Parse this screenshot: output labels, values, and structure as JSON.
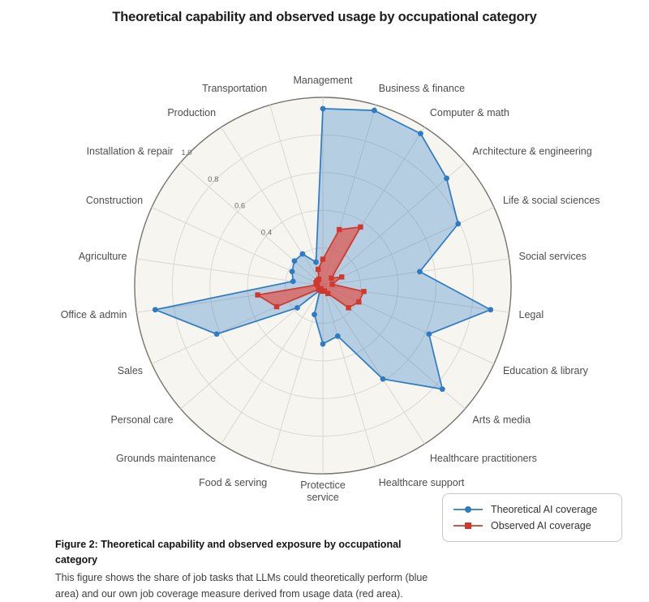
{
  "page": {
    "title": "Theoretical capability and observed usage by occupational category",
    "caption_bold": "Figure 2: Theoretical capability and observed exposure by occupational category",
    "caption_text": "This figure shows the share of job tasks that LLMs could theoretically perform (blue area) and our own job coverage measure derived from usage data (red area)."
  },
  "chart_data": {
    "type": "radar",
    "title": "Theoretical capability and observed usage by occupational category",
    "categories": [
      "Management",
      "Business & finance",
      "Computer & math",
      "Architecture & engineering",
      "Life & social sciences",
      "Social services",
      "Legal",
      "Education & library",
      "Arts & media",
      "Healthcare practitioners",
      "Healthcare support",
      "Protectice\nservice",
      "Food & serving",
      "Grounds maintenance",
      "Personal care",
      "Sales",
      "Office & admin",
      "Agriculture",
      "Construction",
      "Installation & repair",
      "Production",
      "Transportation"
    ],
    "series": [
      {
        "name": "Theoretical AI coverage",
        "marker": "circle",
        "color": "#2f7bc3",
        "fill": "rgba(47,123,195,0.32)",
        "values": [
          0.94,
          0.97,
          0.96,
          0.87,
          0.79,
          0.52,
          0.9,
          0.62,
          0.84,
          0.59,
          0.28,
          0.31,
          0.16,
          0.03,
          0.18,
          0.62,
          0.9,
          0.16,
          0.18,
          0.2,
          0.2,
          0.13
        ]
      },
      {
        "name": "Observed AI coverage",
        "marker": "square",
        "color": "#d0382e",
        "fill": "rgba(227,74,64,0.65)",
        "values": [
          0.14,
          0.31,
          0.37,
          0.06,
          0.11,
          0.05,
          0.22,
          0.21,
          0.18,
          0.05,
          0.03,
          0.03,
          0.03,
          0.02,
          0.03,
          0.27,
          0.35,
          0.03,
          0.04,
          0.04,
          0.04,
          0.09
        ]
      }
    ],
    "radial_ticks": [
      "0.4",
      "0.6",
      "0.8",
      "1.0"
    ],
    "radial_tick_values": [
      0.4,
      0.6,
      0.8,
      1.0
    ],
    "grid_rings": [
      0.2,
      0.4,
      0.6,
      0.8,
      1.0
    ],
    "rlim": [
      0,
      1.0
    ],
    "grid": true,
    "legend_position": "bottom-right",
    "style": {
      "bg": "#f7f5ef",
      "grid": "#dbd8d0",
      "spine": "#76746e",
      "tick_label_color": "#6b6b66",
      "category_label_color": "#4d4d4d"
    }
  }
}
